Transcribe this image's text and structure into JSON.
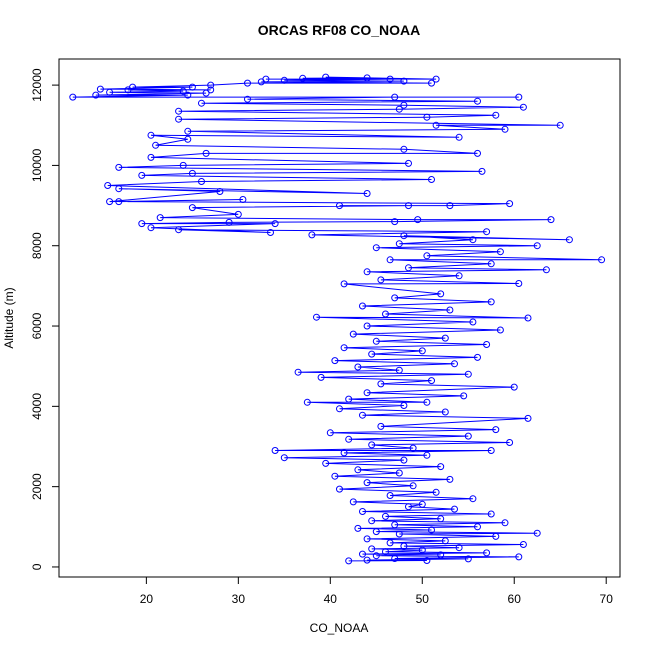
{
  "chart_data": {
    "type": "line",
    "title": "ORCAS RF08 CO_NOAA",
    "xlabel": "CO_NOAA",
    "ylabel": "Altitude (m)",
    "xlim": [
      10.5,
      71.5
    ],
    "ylim": [
      -250,
      12650
    ],
    "x_ticks": [
      20,
      30,
      40,
      50,
      60,
      70
    ],
    "y_ticks": [
      0,
      2000,
      4000,
      6000,
      8000,
      10000,
      12000
    ],
    "marker": "open-circle",
    "series_color": "#0000ff",
    "grid": false,
    "series": [
      {
        "points": [
          [
            42.0,
            150
          ],
          [
            50.5,
            160
          ],
          [
            44.0,
            170
          ],
          [
            55.0,
            200
          ],
          [
            47.0,
            210
          ],
          [
            60.5,
            250
          ],
          [
            45.0,
            280
          ],
          [
            52.0,
            300
          ],
          [
            43.5,
            320
          ],
          [
            57.0,
            350
          ],
          [
            46.0,
            380
          ],
          [
            50.0,
            420
          ],
          [
            44.5,
            450
          ],
          [
            54.0,
            480
          ],
          [
            48.0,
            520
          ],
          [
            61.0,
            560
          ],
          [
            46.5,
            600
          ],
          [
            52.5,
            650
          ],
          [
            44.0,
            700
          ],
          [
            58.0,
            760
          ],
          [
            47.5,
            820
          ],
          [
            62.5,
            840
          ],
          [
            45.0,
            880
          ],
          [
            51.0,
            920
          ],
          [
            43.0,
            960
          ],
          [
            56.0,
            1000
          ],
          [
            47.0,
            1050
          ],
          [
            59.0,
            1100
          ],
          [
            44.5,
            1150
          ],
          [
            52.0,
            1200
          ],
          [
            46.0,
            1260
          ],
          [
            57.5,
            1320
          ],
          [
            43.5,
            1380
          ],
          [
            53.5,
            1440
          ],
          [
            48.5,
            1500
          ],
          [
            50.0,
            1560
          ],
          [
            42.5,
            1620
          ],
          [
            55.5,
            1700
          ],
          [
            46.5,
            1780
          ],
          [
            51.5,
            1860
          ],
          [
            41.0,
            1940
          ],
          [
            49.0,
            2020
          ],
          [
            44.0,
            2100
          ],
          [
            53.0,
            2180
          ],
          [
            40.5,
            2260
          ],
          [
            47.5,
            2340
          ],
          [
            43.0,
            2420
          ],
          [
            52.0,
            2500
          ],
          [
            39.5,
            2580
          ],
          [
            48.0,
            2660
          ],
          [
            35.0,
            2720
          ],
          [
            50.5,
            2780
          ],
          [
            41.5,
            2840
          ],
          [
            57.5,
            2900
          ],
          [
            34.0,
            2900
          ],
          [
            49.0,
            2960
          ],
          [
            44.5,
            3040
          ],
          [
            59.5,
            3100
          ],
          [
            42.0,
            3180
          ],
          [
            55.0,
            3260
          ],
          [
            40.0,
            3340
          ],
          [
            58.0,
            3420
          ],
          [
            45.5,
            3500
          ],
          [
            61.5,
            3700
          ],
          [
            43.5,
            3780
          ],
          [
            52.5,
            3860
          ],
          [
            41.0,
            3940
          ],
          [
            48.0,
            4020
          ],
          [
            37.5,
            4100
          ],
          [
            50.5,
            4100
          ],
          [
            42.0,
            4180
          ],
          [
            54.5,
            4260
          ],
          [
            44.0,
            4340
          ],
          [
            60.0,
            4480
          ],
          [
            45.5,
            4560
          ],
          [
            51.0,
            4640
          ],
          [
            39.0,
            4720
          ],
          [
            55.0,
            4800
          ],
          [
            36.5,
            4850
          ],
          [
            47.5,
            4900
          ],
          [
            43.0,
            4980
          ],
          [
            53.5,
            5060
          ],
          [
            40.5,
            5140
          ],
          [
            56.0,
            5220
          ],
          [
            44.5,
            5300
          ],
          [
            50.0,
            5380
          ],
          [
            41.5,
            5460
          ],
          [
            57.0,
            5540
          ],
          [
            45.0,
            5620
          ],
          [
            52.5,
            5700
          ],
          [
            42.5,
            5800
          ],
          [
            58.5,
            5900
          ],
          [
            44.0,
            6000
          ],
          [
            55.5,
            6100
          ],
          [
            38.5,
            6220
          ],
          [
            61.5,
            6200
          ],
          [
            46.0,
            6300
          ],
          [
            53.0,
            6400
          ],
          [
            43.5,
            6500
          ],
          [
            57.5,
            6600
          ],
          [
            47.0,
            6700
          ],
          [
            52.0,
            6800
          ],
          [
            41.5,
            7050
          ],
          [
            60.5,
            7060
          ],
          [
            45.5,
            7150
          ],
          [
            54.0,
            7250
          ],
          [
            44.0,
            7350
          ],
          [
            63.5,
            7400
          ],
          [
            48.5,
            7450
          ],
          [
            57.5,
            7550
          ],
          [
            46.5,
            7650
          ],
          [
            69.5,
            7650
          ],
          [
            50.5,
            7750
          ],
          [
            58.5,
            7850
          ],
          [
            45.0,
            7950
          ],
          [
            62.5,
            8000
          ],
          [
            47.5,
            8050
          ],
          [
            55.5,
            8150
          ],
          [
            48.0,
            8250
          ],
          [
            66.0,
            8150
          ],
          [
            38.0,
            8270
          ],
          [
            57.0,
            8350
          ],
          [
            23.5,
            8400
          ],
          [
            33.5,
            8330
          ],
          [
            20.5,
            8450
          ],
          [
            34.0,
            8550
          ],
          [
            19.5,
            8550
          ],
          [
            29.0,
            8580
          ],
          [
            47.0,
            8600
          ],
          [
            64.0,
            8650
          ],
          [
            49.5,
            8650
          ],
          [
            21.5,
            8700
          ],
          [
            30.0,
            8780
          ],
          [
            25.0,
            8950
          ],
          [
            48.5,
            9000
          ],
          [
            41.0,
            9000
          ],
          [
            53.0,
            9000
          ],
          [
            59.5,
            9050
          ],
          [
            17.0,
            9100
          ],
          [
            30.5,
            9150
          ],
          [
            16.0,
            9100
          ],
          [
            28.0,
            9350
          ],
          [
            17.0,
            9420
          ],
          [
            44.0,
            9300
          ],
          [
            15.8,
            9500
          ],
          [
            26.0,
            9600
          ],
          [
            51.0,
            9650
          ],
          [
            19.5,
            9750
          ],
          [
            25.0,
            9800
          ],
          [
            56.5,
            9850
          ],
          [
            17.0,
            9950
          ],
          [
            24.0,
            10000
          ],
          [
            48.5,
            10050
          ],
          [
            20.5,
            10200
          ],
          [
            26.5,
            10300
          ],
          [
            56.0,
            10300
          ],
          [
            48.0,
            10400
          ],
          [
            21.0,
            10500
          ],
          [
            24.5,
            10650
          ],
          [
            20.5,
            10750
          ],
          [
            54.0,
            10700
          ],
          [
            24.5,
            10850
          ],
          [
            59.0,
            10900
          ],
          [
            51.5,
            11000
          ],
          [
            65.0,
            11000
          ],
          [
            23.5,
            11150
          ],
          [
            50.5,
            11200
          ],
          [
            58.0,
            11250
          ],
          [
            23.5,
            11350
          ],
          [
            47.5,
            11400
          ],
          [
            61.0,
            11450
          ],
          [
            48.0,
            11500
          ],
          [
            26.0,
            11550
          ],
          [
            56.0,
            11600
          ],
          [
            31.0,
            11650
          ],
          [
            47.0,
            11700
          ],
          [
            60.5,
            11700
          ],
          [
            12.0,
            11700
          ],
          [
            24.5,
            11750
          ],
          [
            14.5,
            11750
          ],
          [
            26.5,
            11800
          ],
          [
            16.0,
            11820
          ],
          [
            24.0,
            11850
          ],
          [
            18.0,
            11880
          ],
          [
            27.0,
            11880
          ],
          [
            15.0,
            11900
          ],
          [
            25.0,
            11950
          ],
          [
            18.5,
            11950
          ],
          [
            27.0,
            12000
          ],
          [
            31.0,
            12050
          ],
          [
            51.0,
            12050
          ],
          [
            32.5,
            12080
          ],
          [
            48.0,
            12100
          ],
          [
            35.0,
            12120
          ],
          [
            46.5,
            12150
          ],
          [
            37.0,
            12170
          ],
          [
            44.0,
            12180
          ],
          [
            39.5,
            12200
          ],
          [
            51.5,
            12150
          ],
          [
            33.0,
            12150
          ]
        ]
      }
    ]
  }
}
